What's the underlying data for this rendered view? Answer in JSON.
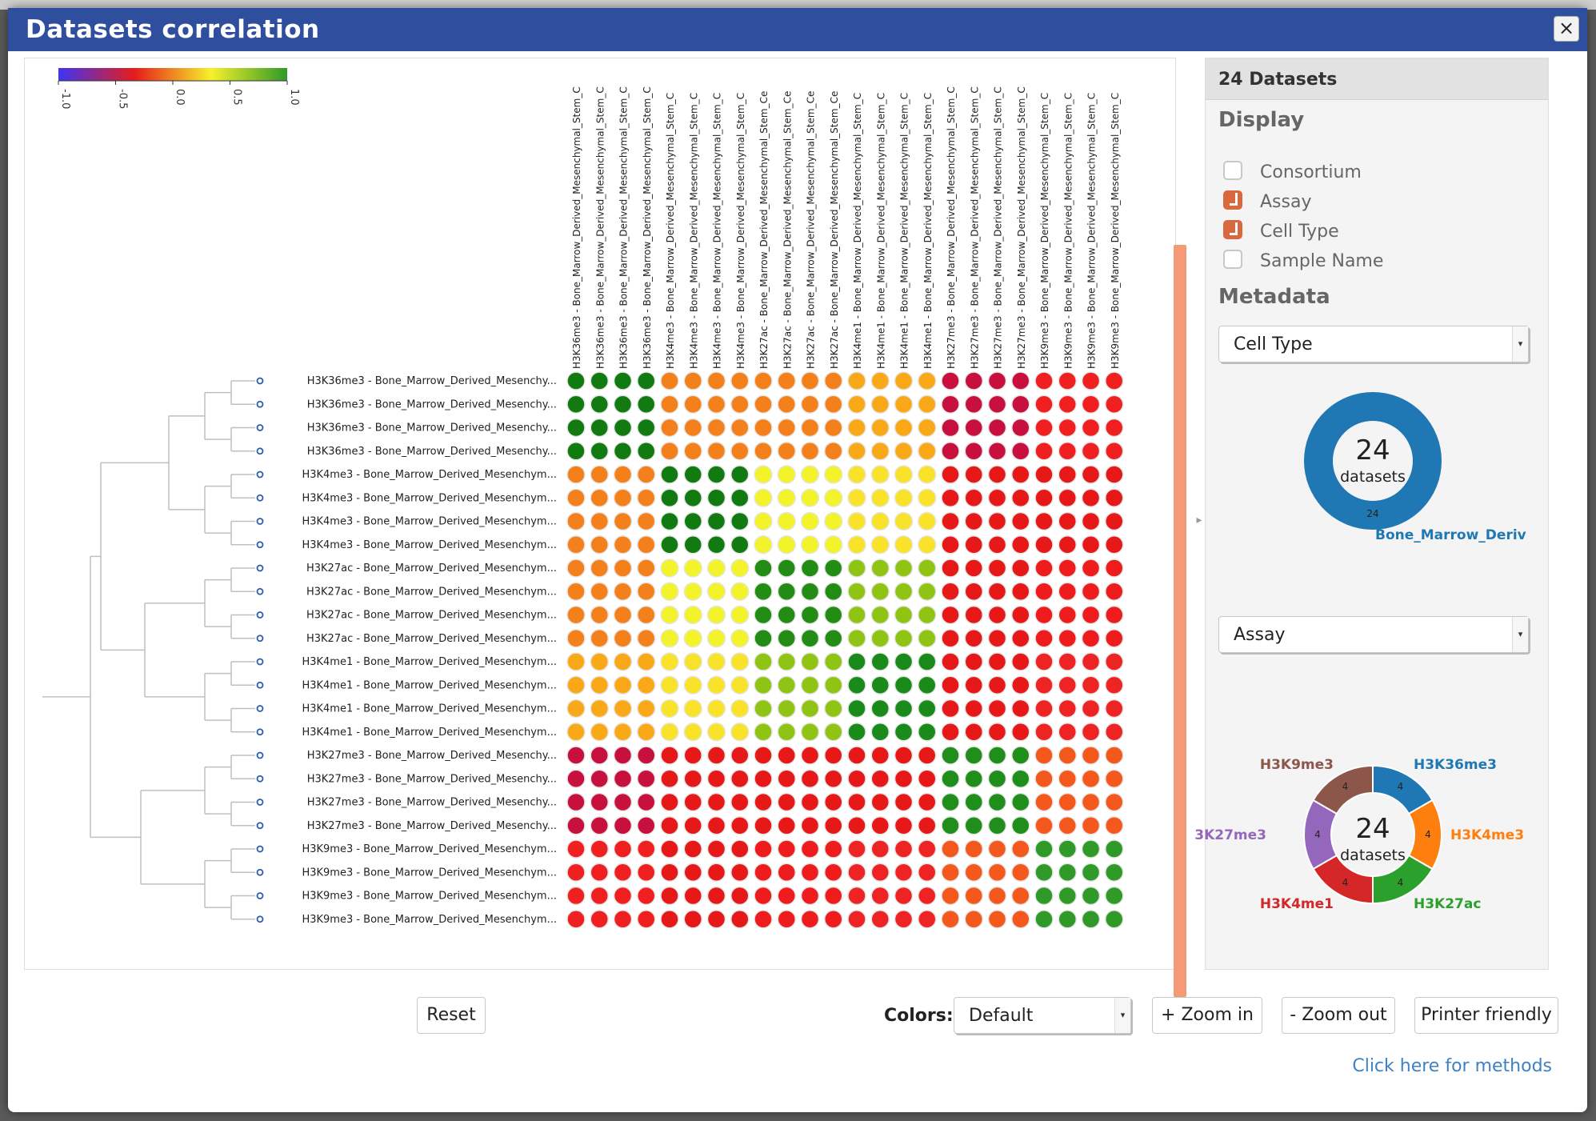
{
  "window": {
    "title": "Datasets correlation",
    "close_label": "×"
  },
  "color_scale": {
    "ticks": [
      "-1.0",
      "-0.5",
      "0.0",
      "0.5",
      "1.0"
    ],
    "colors": [
      "#3d34f2",
      "#e61c1c",
      "#f6f12a",
      "#2f9a28"
    ]
  },
  "matrix": {
    "groups": [
      "H3K36me3",
      "H3K4me3",
      "H3K27ac",
      "H3K4me1",
      "H3K27me3",
      "H3K9me3"
    ],
    "column_labels": [
      "H3K36me3 - Bone_Marrow_Derived_Mesenchymal_Stem_C",
      "H3K36me3 - Bone_Marrow_Derived_Mesenchymal_Stem_C",
      "H3K36me3 - Bone_Marrow_Derived_Mesenchymal_Stem_C",
      "H3K36me3 - Bone_Marrow_Derived_Mesenchymal_Stem_C",
      "H3K4me3 - Bone_Marrow_Derived_Mesenchymal_Stem_C",
      "H3K4me3 - Bone_Marrow_Derived_Mesenchymal_Stem_C",
      "H3K4me3 - Bone_Marrow_Derived_Mesenchymal_Stem_C",
      "H3K4me3 - Bone_Marrow_Derived_Mesenchymal_Stem_C",
      "H3K27ac - Bone_Marrow_Derived_Mesenchymal_Stem_Ce",
      "H3K27ac - Bone_Marrow_Derived_Mesenchymal_Stem_Ce",
      "H3K27ac - Bone_Marrow_Derived_Mesenchymal_Stem_Ce",
      "H3K27ac - Bone_Marrow_Derived_Mesenchymal_Stem_Ce",
      "H3K4me1 - Bone_Marrow_Derived_Mesenchymal_Stem_C",
      "H3K4me1 - Bone_Marrow_Derived_Mesenchymal_Stem_C",
      "H3K4me1 - Bone_Marrow_Derived_Mesenchymal_Stem_C",
      "H3K4me1 - Bone_Marrow_Derived_Mesenchymal_Stem_C",
      "H3K27me3 - Bone_Marrow_Derived_Mesenchymal_Stem_C",
      "H3K27me3 - Bone_Marrow_Derived_Mesenchymal_Stem_C",
      "H3K27me3 - Bone_Marrow_Derived_Mesenchymal_Stem_C",
      "H3K27me3 - Bone_Marrow_Derived_Mesenchymal_Stem_C",
      "H3K9me3 - Bone_Marrow_Derived_Mesenchymal_Stem_C",
      "H3K9me3 - Bone_Marrow_Derived_Mesenchymal_Stem_C",
      "H3K9me3 - Bone_Marrow_Derived_Mesenchymal_Stem_C",
      "H3K9me3 - Bone_Marrow_Derived_Mesenchymal_Stem_C"
    ],
    "row_labels": [
      "H3K36me3 - Bone_Marrow_Derived_Mesenchy...",
      "H3K36me3 - Bone_Marrow_Derived_Mesenchy...",
      "H3K36me3 - Bone_Marrow_Derived_Mesenchy...",
      "H3K36me3 - Bone_Marrow_Derived_Mesenchy...",
      "H3K4me3 - Bone_Marrow_Derived_Mesenchym...",
      "H3K4me3 - Bone_Marrow_Derived_Mesenchym...",
      "H3K4me3 - Bone_Marrow_Derived_Mesenchym...",
      "H3K4me3 - Bone_Marrow_Derived_Mesenchym...",
      "H3K27ac - Bone_Marrow_Derived_Mesenchym...",
      "H3K27ac - Bone_Marrow_Derived_Mesenchym...",
      "H3K27ac - Bone_Marrow_Derived_Mesenchym...",
      "H3K27ac - Bone_Marrow_Derived_Mesenchym...",
      "H3K4me1 - Bone_Marrow_Derived_Mesenchym...",
      "H3K4me1 - Bone_Marrow_Derived_Mesenchym...",
      "H3K4me1 - Bone_Marrow_Derived_Mesenchym...",
      "H3K4me1 - Bone_Marrow_Derived_Mesenchym...",
      "H3K27me3 - Bone_Marrow_Derived_Mesenchy...",
      "H3K27me3 - Bone_Marrow_Derived_Mesenchy...",
      "H3K27me3 - Bone_Marrow_Derived_Mesenchy...",
      "H3K27me3 - Bone_Marrow_Derived_Mesenchy...",
      "H3K9me3 - Bone_Marrow_Derived_Mesenchym...",
      "H3K9me3 - Bone_Marrow_Derived_Mesenchym...",
      "H3K9me3 - Bone_Marrow_Derived_Mesenchym...",
      "H3K9me3 - Bone_Marrow_Derived_Mesenchym..."
    ],
    "group_colors": [
      [
        "#117a11",
        "#f4801c",
        "#f4801c",
        "#f9a918",
        "#c8103e",
        "#f02020"
      ],
      [
        "#f4801c",
        "#117a11",
        "#f3f32c",
        "#f8e32a",
        "#e61818",
        "#e61818"
      ],
      [
        "#f4801c",
        "#f3f32c",
        "#228c14",
        "#8fc414",
        "#e61818",
        "#ee1c1c"
      ],
      [
        "#f9a918",
        "#f8e32a",
        "#8fc414",
        "#1a8a1a",
        "#e61818",
        "#ee2424"
      ],
      [
        "#c8103e",
        "#e61818",
        "#e61818",
        "#e61818",
        "#1f8e1a",
        "#f4581c"
      ],
      [
        "#f02020",
        "#e61818",
        "#ee1c1c",
        "#ee2424",
        "#f4581c",
        "#2f9a28"
      ]
    ]
  },
  "sidebar": {
    "header": "24 Datasets",
    "display_title": "Display",
    "display_options": [
      {
        "label": "Consortium",
        "checked": false
      },
      {
        "label": "Assay",
        "checked": true
      },
      {
        "label": "Cell Type",
        "checked": true
      },
      {
        "label": "Sample Name",
        "checked": false
      }
    ],
    "metadata_title": "Metadata",
    "metadata_select_1": "Cell Type",
    "donut1": {
      "count": "24",
      "sub": "datasets",
      "slice_value": "24",
      "label": "Bone_Marrow_Deriv",
      "color": "#1f78b4"
    },
    "metadata_select_2": "Assay",
    "donut2": {
      "count": "24",
      "sub": "datasets",
      "slices": [
        {
          "label": "H3K36me3",
          "value": 4,
          "color": "#1f77b4"
        },
        {
          "label": "H3K4me3",
          "value": 4,
          "color": "#ff7f0e"
        },
        {
          "label": "H3K27ac",
          "value": 4,
          "color": "#2ca02c"
        },
        {
          "label": "H3K4me1",
          "value": 4,
          "color": "#d62728"
        },
        {
          "label": "3K27me3",
          "value": 4,
          "color": "#9467bd"
        },
        {
          "label": "H3K9me3",
          "value": 4,
          "color": "#8c564b"
        }
      ]
    }
  },
  "controls": {
    "reset_label": "Reset",
    "colors_label": "Colors:",
    "colors_value": "Default",
    "zoom_in_label": "+ Zoom in",
    "zoom_out_label": "- Zoom out",
    "printer_label": "Printer friendly",
    "methods_link": "Click here for methods"
  }
}
